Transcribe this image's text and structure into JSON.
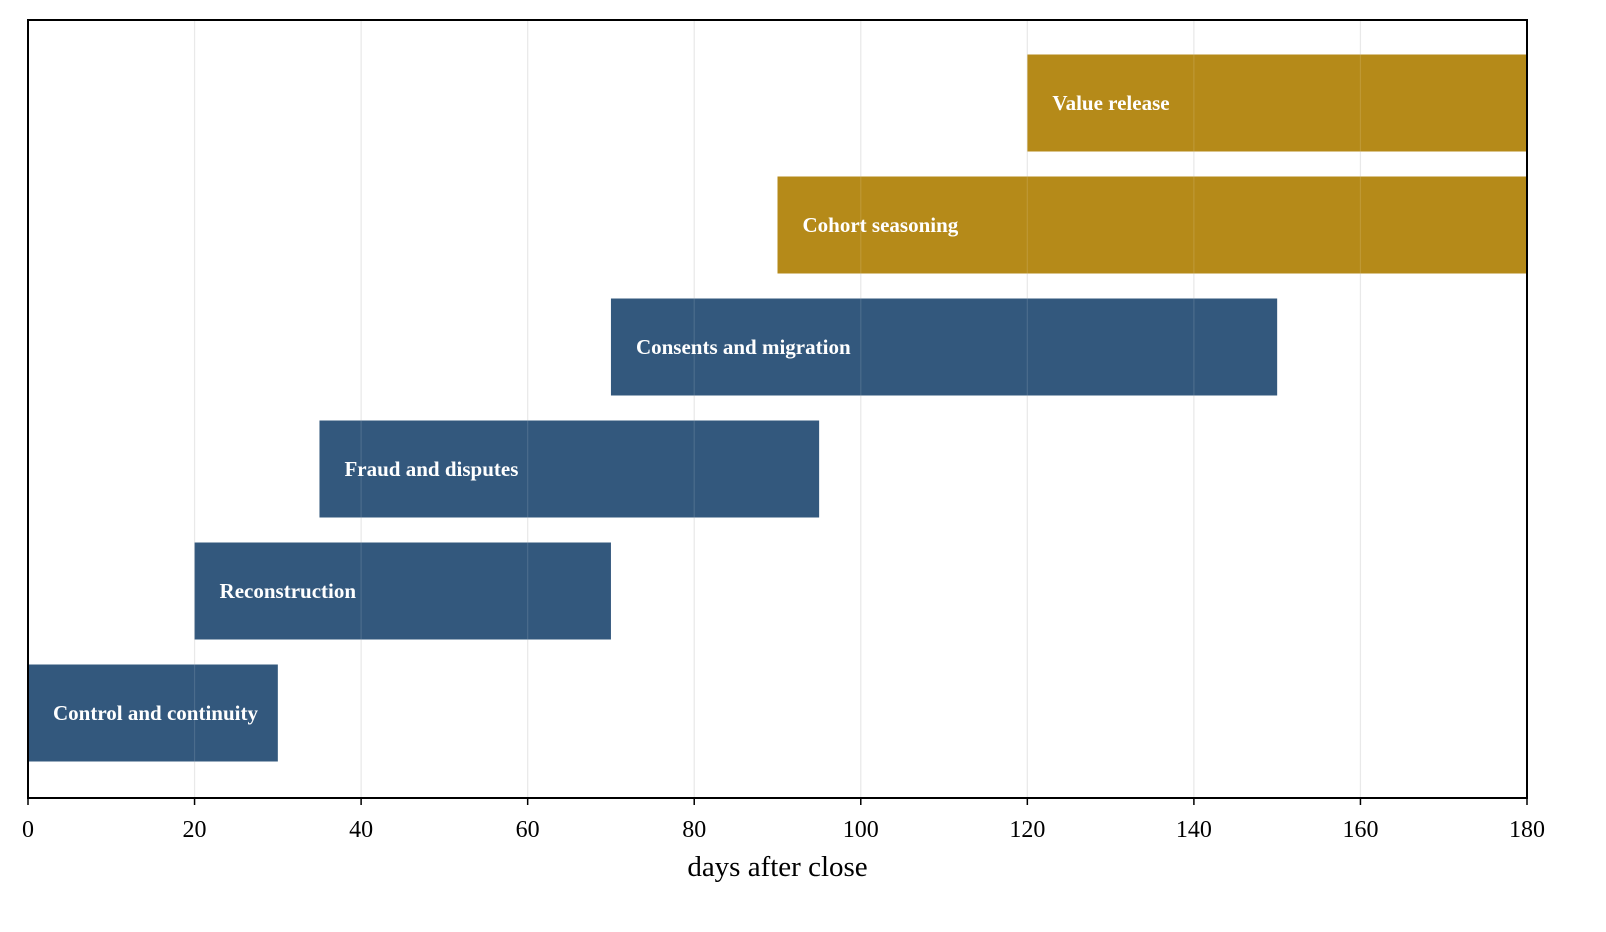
{
  "chart_data": {
    "type": "bar",
    "orientation": "horizontal",
    "xlabel": "days after close",
    "ylabel": "",
    "xlim": [
      0,
      180
    ],
    "xticks": [
      0,
      20,
      40,
      60,
      80,
      100,
      120,
      140,
      160,
      180
    ],
    "grid": "vertical",
    "tasks": [
      {
        "label": "Control and continuity",
        "start": 0,
        "end": 30,
        "color": "#33587d"
      },
      {
        "label": "Reconstruction",
        "start": 20,
        "end": 70,
        "color": "#33587d"
      },
      {
        "label": "Fraud and disputes",
        "start": 35,
        "end": 95,
        "color": "#33587d"
      },
      {
        "label": "Consents and migration",
        "start": 70,
        "end": 150,
        "color": "#33587d"
      },
      {
        "label": "Cohort seasoning",
        "start": 90,
        "end": 180,
        "color": "#b58a19"
      },
      {
        "label": "Value release",
        "start": 120,
        "end": 180,
        "color": "#b58a19"
      }
    ]
  }
}
